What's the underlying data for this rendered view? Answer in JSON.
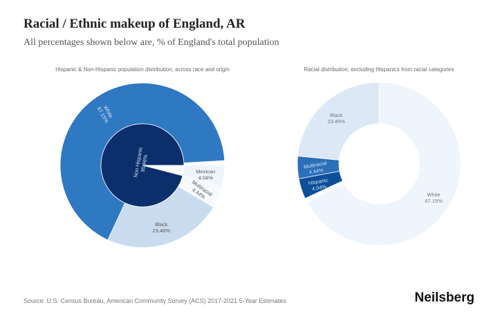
{
  "title": "Racial / Ethnic makeup of England, AR",
  "subtitle": "All percentages shown below are, % of England's total population",
  "source": "Source: U.S. Census Bureau, American Community Survey (ACS) 2017-2021 5-Year Estimates",
  "brand": "Neilsberg",
  "chart_data": [
    {
      "type": "pie",
      "title": "Hispanic & Non-Hispanic population distribution, across race and origin",
      "inner": [
        {
          "label": "Non Hispanic",
          "value": 95.96,
          "display": "95.96%",
          "color": "#0b2f6b"
        },
        {
          "label": "Hispanic",
          "value": 4.04,
          "display": "",
          "color": "#ffffff"
        }
      ],
      "outer": [
        {
          "label": "Mexican",
          "value": 4.04,
          "display": "4.04%",
          "color": "#eef4fb"
        },
        {
          "label": "Multiracial",
          "value": 4.44,
          "display": "4.44%",
          "color": "#f7fafd"
        },
        {
          "label": "Black",
          "value": 23.46,
          "display": "23.46%",
          "color": "#c9dcef"
        },
        {
          "label": "White",
          "value": 67.15,
          "display": "67.15%",
          "color": "#2f78c2"
        }
      ]
    },
    {
      "type": "pie",
      "title": "Racial distribution, excluding Hispanics from racial categories",
      "slices": [
        {
          "label": "White",
          "value": 67.15,
          "display": "67.15%",
          "color": "#eff5fc"
        },
        {
          "label": "Hispanic",
          "value": 4.04,
          "display": "4.04%",
          "color": "#0e4f9a"
        },
        {
          "label": "Multiracial",
          "value": 4.44,
          "display": "4.44%",
          "color": "#2a6fb8"
        },
        {
          "label": "Black",
          "value": 23.46,
          "display": "23.46%",
          "color": "#dde8f6"
        }
      ]
    }
  ]
}
